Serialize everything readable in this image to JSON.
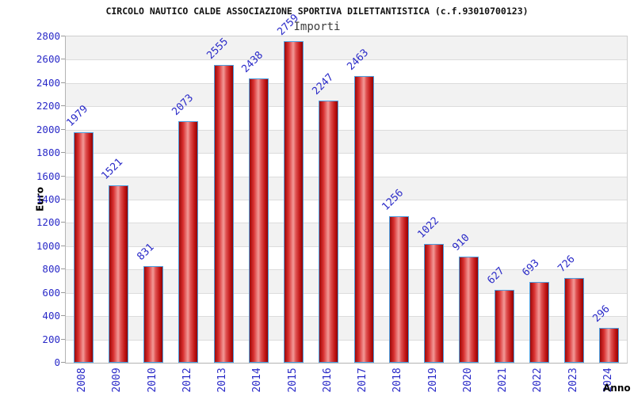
{
  "chart_data": {
    "type": "bar",
    "title": "CIRCOLO NAUTICO CALDE ASSOCIAZIONE SPORTIVA DILETTANTISTICA (c.f.93010700123)",
    "subtitle": "Importi",
    "xlabel": "Anno",
    "ylabel": "Euro",
    "categories": [
      "2008",
      "2009",
      "2010",
      "2012",
      "2013",
      "2014",
      "2015",
      "2016",
      "2017",
      "2018",
      "2019",
      "2020",
      "2021",
      "2022",
      "2023",
      "2024"
    ],
    "values": [
      1979,
      1521,
      831,
      2073,
      2555,
      2438,
      2759,
      2247,
      2463,
      1256,
      1022,
      910,
      627,
      693,
      726,
      296
    ],
    "ylim": [
      0,
      2800
    ],
    "ytick_step": 200,
    "grid": "horizontal",
    "legend": "none",
    "colors": {
      "bar_edge": "#4d9fe0",
      "bar_dark": "#9c0a0a",
      "bar_light": "#f29a98",
      "tick_label_blue": "#2a2ac8",
      "band_gray": "#f2f2f2",
      "band_white": "#ffffff",
      "gridline": "#dcdcdc",
      "title_color": "#111111",
      "subtitle_color": "#3c3c3c"
    }
  }
}
